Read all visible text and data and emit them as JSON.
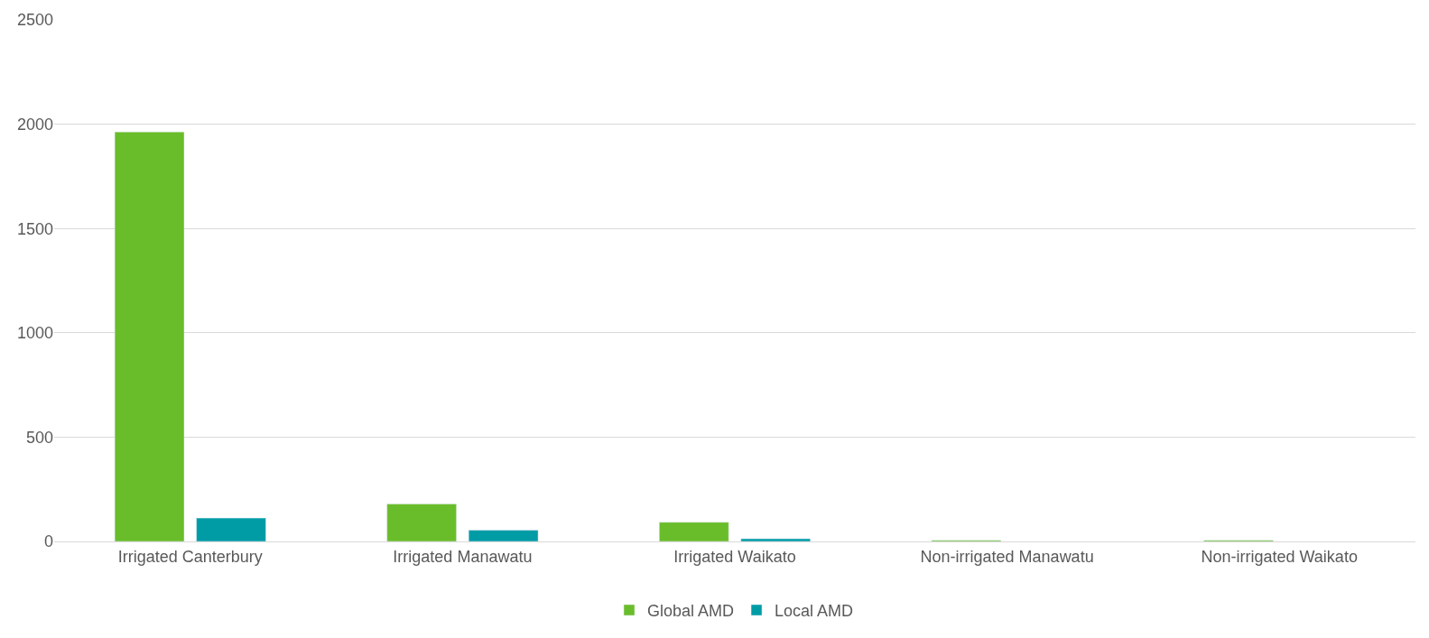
{
  "chart_data": {
    "type": "bar",
    "categories": [
      "Irrigated Canterbury",
      "Irrigated Manawatu",
      "Irrigated Waikato",
      "Non-irrigated Manawatu",
      "Non-irrigated Waikato"
    ],
    "series": [
      {
        "name": "Global AMD",
        "color": "#6abd2a",
        "values": [
          1963,
          180,
          92,
          5,
          5
        ]
      },
      {
        "name": "Local AMD",
        "color": "#009ca6",
        "values": [
          112,
          54,
          13,
          null,
          null
        ]
      }
    ],
    "ylim": [
      0,
      2500
    ],
    "yticks": [
      0,
      500,
      1000,
      1500,
      2000,
      2500
    ],
    "grid": "y",
    "legend": "bottom"
  }
}
